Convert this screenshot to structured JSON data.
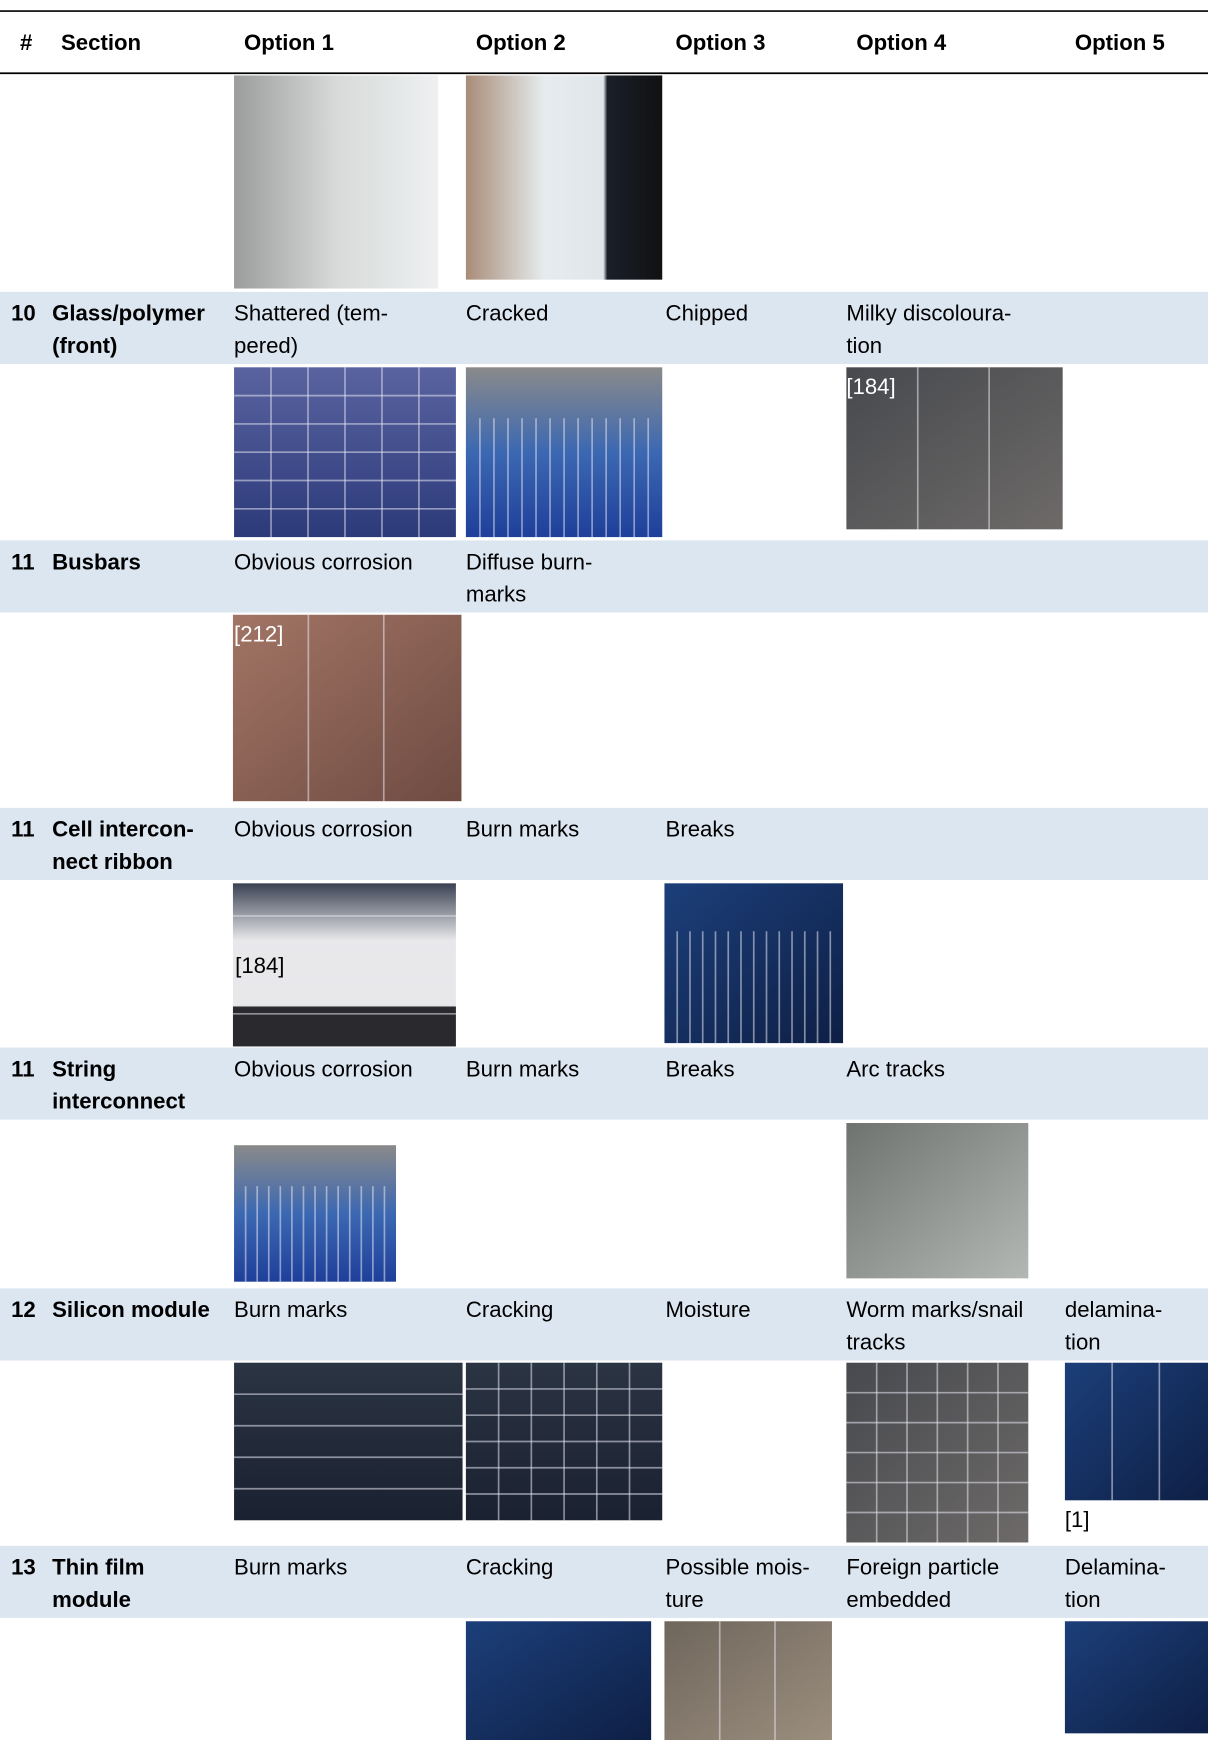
{
  "header": [
    "#",
    "Section",
    "Option 1",
    "Option 2",
    "Option 3",
    "Option 4",
    "Option 5"
  ],
  "rows": [
    {
      "number": "10",
      "section": [
        "Glass/polymer",
        "(front)"
      ],
      "options": [
        [
          "Shattered (tem-",
          "pered)"
        ],
        [
          "Cracked"
        ],
        [
          "Chipped"
        ],
        [
          "Milky discoloura-",
          "tion"
        ],
        null
      ]
    },
    {
      "number": "11",
      "section": [
        "Busbars"
      ],
      "options": [
        [
          "Obvious corrosion"
        ],
        [
          "Diffuse burn-",
          "marks"
        ],
        null,
        null,
        null
      ]
    },
    {
      "number": "11",
      "section": [
        "Cell intercon-",
        "nect ribbon"
      ],
      "options": [
        [
          "Obvious corrosion"
        ],
        [
          "Burn marks"
        ],
        [
          "Breaks"
        ],
        null,
        null
      ]
    },
    {
      "number": "11",
      "section": [
        "String",
        "interconnect"
      ],
      "options": [
        [
          "Obvious corrosion"
        ],
        [
          "Burn marks"
        ],
        [
          "Breaks"
        ],
        [
          "Arc tracks"
        ],
        null
      ]
    },
    {
      "number": "12",
      "section": [
        "Silicon module"
      ],
      "options": [
        [
          "Burn marks"
        ],
        [
          "Cracking"
        ],
        [
          "Moisture"
        ],
        [
          "Worm marks/snail",
          "tracks"
        ],
        [
          "delamina-",
          "tion"
        ]
      ]
    },
    {
      "number": "13",
      "section": [
        "Thin film",
        "module"
      ],
      "options": [
        [
          "Burn marks"
        ],
        [
          "Cracking"
        ],
        [
          "Possible mois-",
          "ture"
        ],
        [
          "Foreign particle",
          "embedded"
        ],
        [
          "Delamina-",
          "tion"
        ]
      ]
    }
  ],
  "image_captions": [
    "[184]",
    "[212]",
    "[184]",
    "[1]"
  ]
}
